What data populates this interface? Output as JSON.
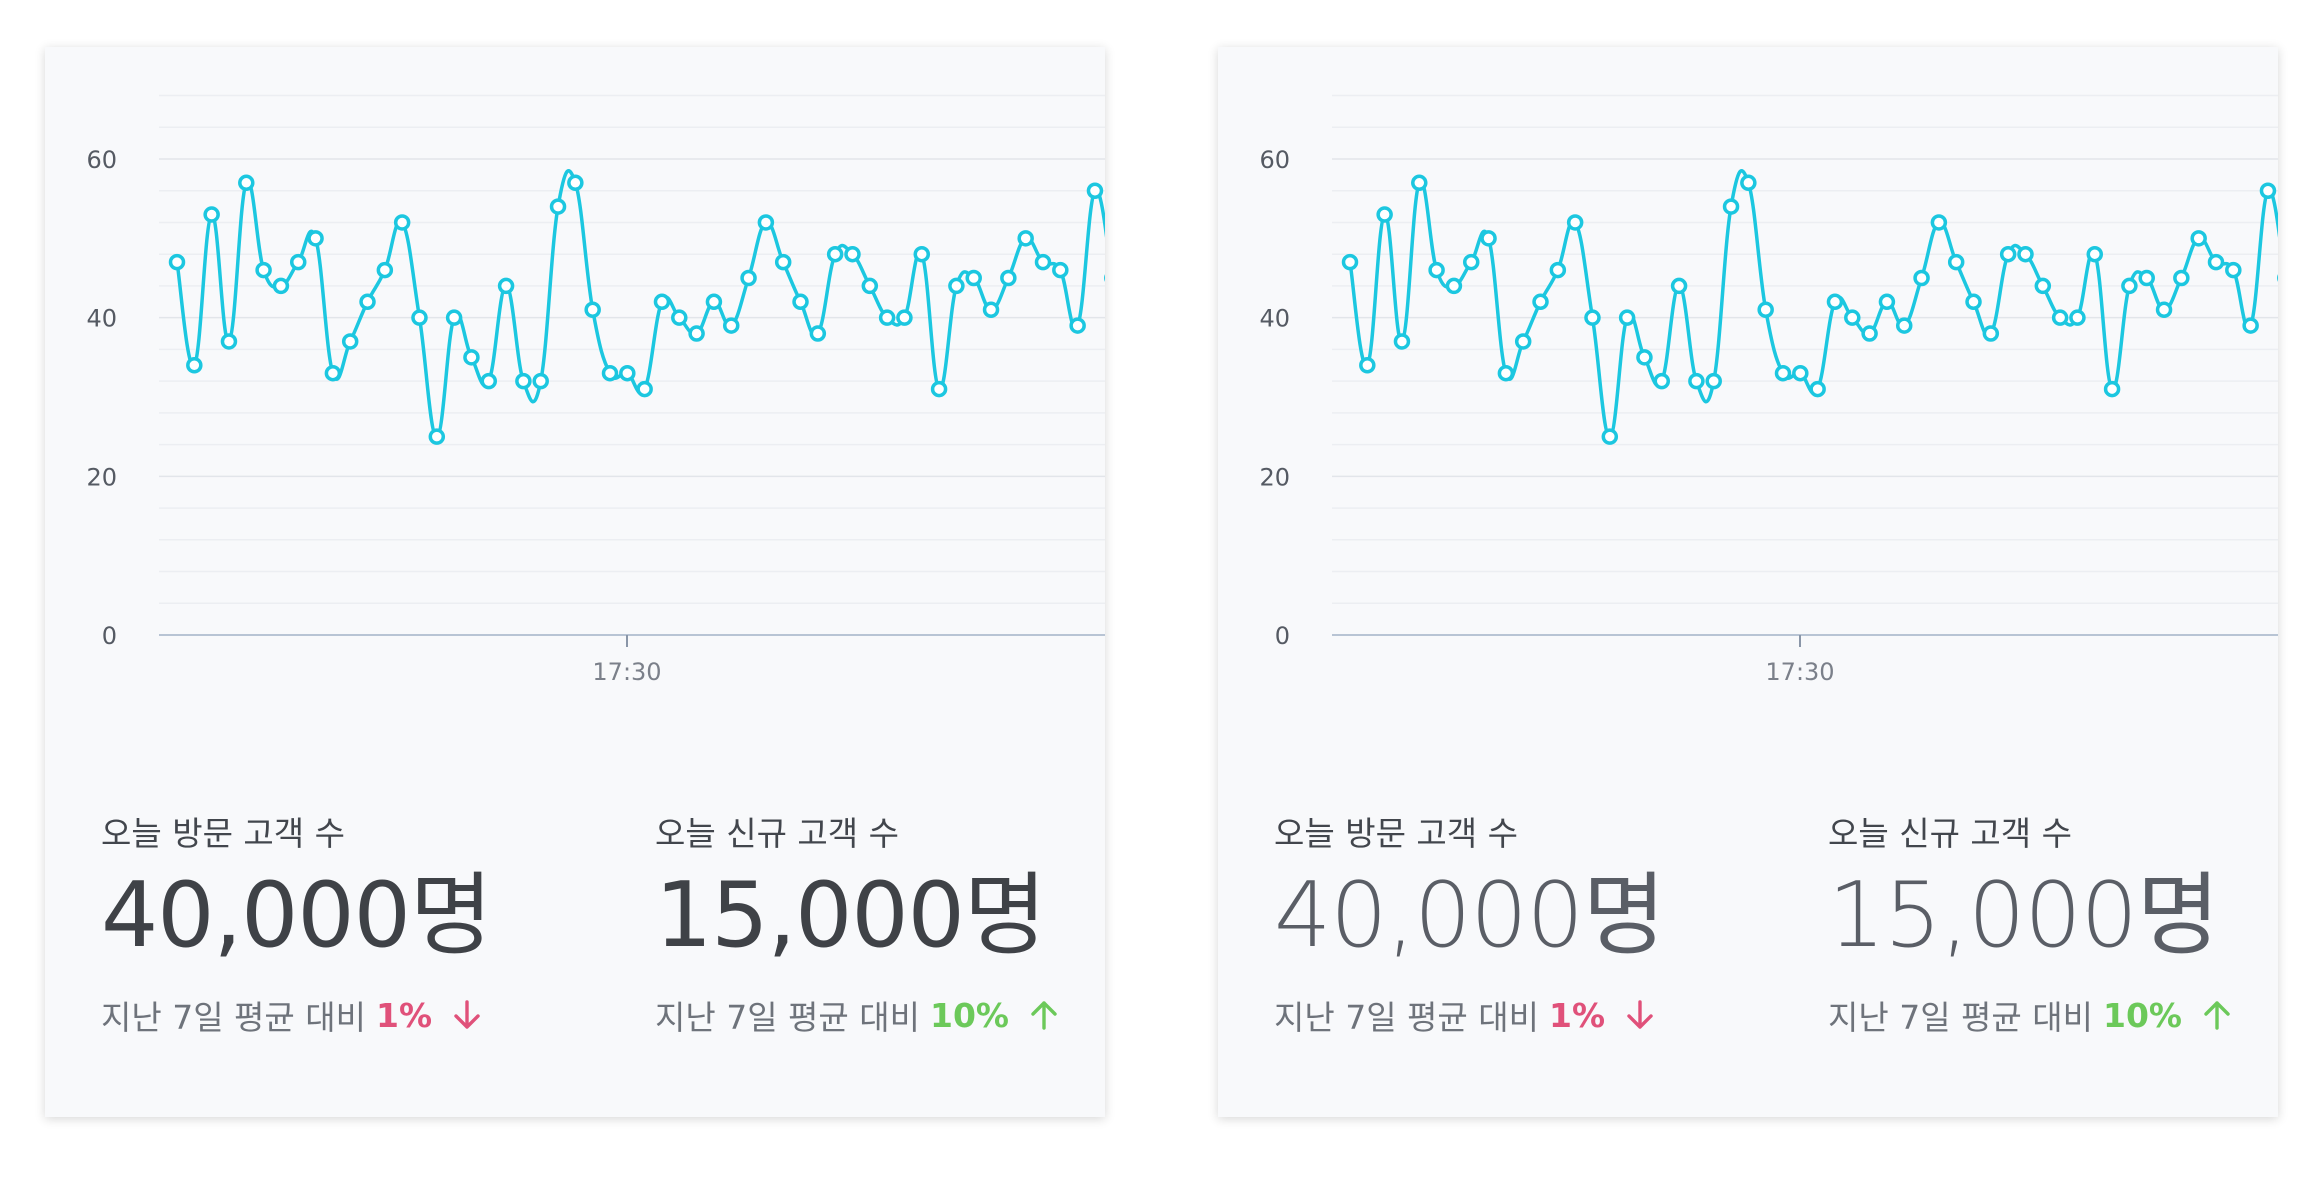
{
  "chart_data": [
    {
      "type": "line",
      "title": "",
      "xlabel": "",
      "ylabel": "",
      "ylim": [
        0,
        70
      ],
      "yticks": [
        "0",
        "20",
        "40",
        "60"
      ],
      "xtick_label": "17:30",
      "grid": true,
      "series": [
        {
          "color": "#1cc7e0",
          "values": [
            47,
            34,
            53,
            37,
            57,
            46,
            44,
            47,
            50,
            33,
            37,
            42,
            46,
            52,
            40,
            25,
            40,
            35,
            32,
            44,
            32,
            32,
            54,
            57,
            41,
            33,
            33,
            31,
            42,
            40,
            38,
            42,
            39,
            45,
            52,
            47,
            42,
            38,
            48,
            48,
            44,
            40,
            40,
            48,
            31,
            44,
            45,
            41,
            45,
            50,
            47,
            46,
            39,
            56,
            45
          ]
        }
      ]
    },
    {
      "type": "line",
      "title": "",
      "xlabel": "",
      "ylabel": "",
      "ylim": [
        0,
        70
      ],
      "yticks": [
        "0",
        "20",
        "40",
        "60"
      ],
      "xtick_label": "17:30",
      "grid": true,
      "series": [
        {
          "color": "#1cc7e0",
          "values": [
            47,
            34,
            53,
            37,
            57,
            46,
            44,
            47,
            50,
            33,
            37,
            42,
            46,
            52,
            40,
            25,
            40,
            35,
            32,
            44,
            32,
            32,
            54,
            57,
            41,
            33,
            33,
            31,
            42,
            40,
            38,
            42,
            39,
            45,
            52,
            47,
            42,
            38,
            48,
            48,
            44,
            40,
            40,
            48,
            31,
            44,
            45,
            41,
            45,
            50,
            47,
            46,
            39,
            56,
            45
          ]
        }
      ]
    }
  ],
  "cards": [
    {
      "visitors_label": "오늘 방문 고객 수",
      "visitors_value": "40,000명",
      "visitors_compare": "지난 7일 평균 대비",
      "visitors_pct": "1%",
      "new_label": "오늘 신규 고객 수",
      "new_value": "15,000명",
      "new_compare": "지난 7일 평균 대비",
      "new_pct": "10%"
    },
    {
      "visitors_label": "오늘 방문 고객 수",
      "visitors_value": "40,000명",
      "visitors_compare": "지난 7일 평균 대비",
      "visitors_pct": "1%",
      "new_label": "오늘 신규 고객 수",
      "new_value": "15,000명",
      "new_compare": "지난 7일 평균 대비",
      "new_pct": "10%"
    }
  ],
  "colors": {
    "line": "#1cc7e0",
    "down": "#e0517a",
    "up": "#6cc95a"
  },
  "icons": {
    "down": "arrow-down-icon",
    "up": "arrow-up-icon"
  }
}
